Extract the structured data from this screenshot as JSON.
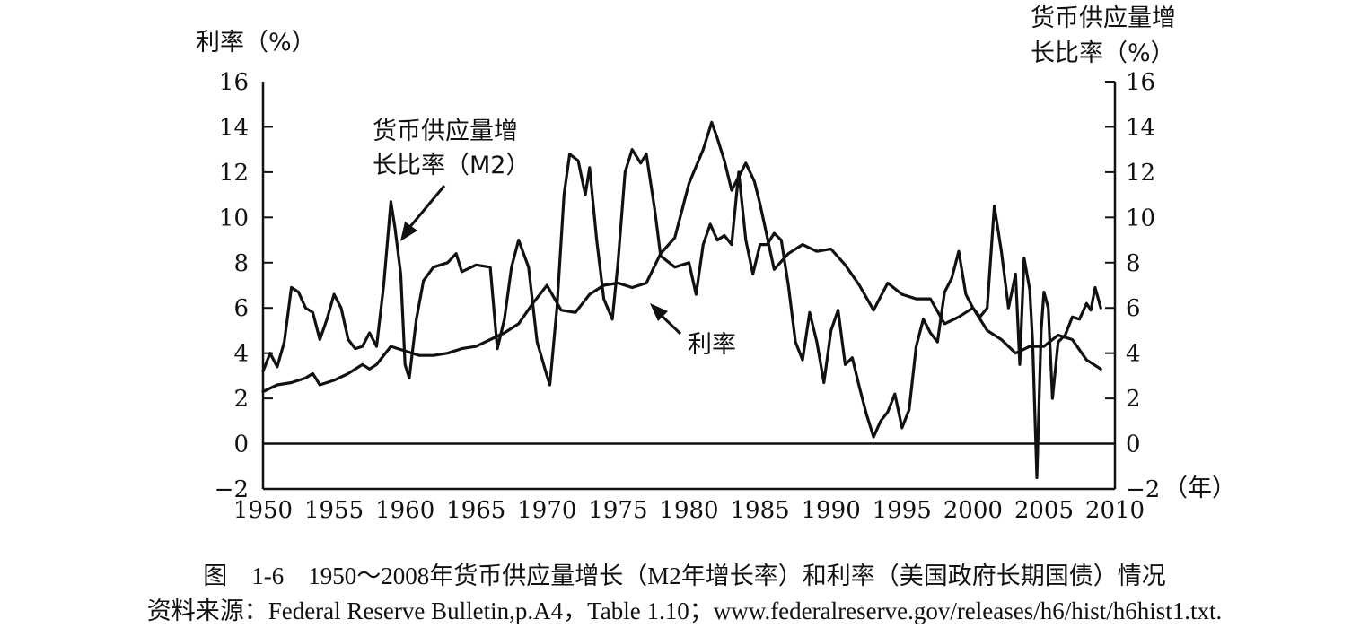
{
  "chart_data": {
    "type": "line",
    "title": "",
    "ylabel_left": "利率（%）",
    "ylabel_right_line1": "货币供应量增",
    "ylabel_right_line2": "长比率（%）",
    "x_unit_label": "（年）",
    "xlim": [
      1950,
      2010
    ],
    "ylim": [
      -2,
      16
    ],
    "x_ticks": [
      "1950",
      "1955",
      "1960",
      "1965",
      "1970",
      "1975",
      "1980",
      "1985",
      "1990",
      "1995",
      "2000",
      "2005",
      "2010"
    ],
    "y_ticks_left": [
      "16",
      "14",
      "12",
      "10",
      "8",
      "6",
      "4",
      "2",
      "0",
      "−2"
    ],
    "y_ticks_right": [
      "16",
      "14",
      "12",
      "10",
      "8",
      "6",
      "4",
      "2",
      "0",
      "−2"
    ],
    "annotation_m2_line1": "货币供应量增",
    "annotation_m2_line2": "长比率（M2）",
    "annotation_rate": "利率",
    "series": [
      {
        "name": "货币供应量增长比率（M2）",
        "points": [
          [
            1950.0,
            3.2
          ],
          [
            1950.5,
            4.0
          ],
          [
            1951.0,
            3.4
          ],
          [
            1951.5,
            4.5
          ],
          [
            1952.0,
            6.9
          ],
          [
            1952.5,
            6.7
          ],
          [
            1953.0,
            6.0
          ],
          [
            1953.5,
            5.8
          ],
          [
            1954.0,
            4.6
          ],
          [
            1954.5,
            5.5
          ],
          [
            1955.0,
            6.6
          ],
          [
            1955.5,
            6.0
          ],
          [
            1956.0,
            4.6
          ],
          [
            1956.5,
            4.2
          ],
          [
            1957.0,
            4.3
          ],
          [
            1957.5,
            4.9
          ],
          [
            1958.0,
            4.3
          ],
          [
            1958.5,
            7.0
          ],
          [
            1959.0,
            10.7
          ],
          [
            1959.3,
            9.5
          ],
          [
            1959.7,
            7.5
          ],
          [
            1960.0,
            3.5
          ],
          [
            1960.3,
            2.9
          ],
          [
            1960.8,
            5.5
          ],
          [
            1961.3,
            7.2
          ],
          [
            1962.0,
            7.8
          ],
          [
            1963.0,
            8.0
          ],
          [
            1963.6,
            8.4
          ],
          [
            1964.0,
            7.6
          ],
          [
            1965.0,
            7.9
          ],
          [
            1966.0,
            7.8
          ],
          [
            1966.5,
            4.2
          ],
          [
            1967.0,
            5.5
          ],
          [
            1967.5,
            7.8
          ],
          [
            1968.0,
            9.0
          ],
          [
            1968.7,
            7.8
          ],
          [
            1969.3,
            4.5
          ],
          [
            1970.0,
            3.0
          ],
          [
            1970.2,
            2.6
          ],
          [
            1970.7,
            6.0
          ],
          [
            1971.2,
            11.0
          ],
          [
            1971.6,
            12.8
          ],
          [
            1972.2,
            12.5
          ],
          [
            1972.7,
            11.0
          ],
          [
            1973.0,
            12.2
          ],
          [
            1973.5,
            9.0
          ],
          [
            1974.0,
            6.4
          ],
          [
            1974.6,
            5.5
          ],
          [
            1975.0,
            8.0
          ],
          [
            1975.5,
            12.0
          ],
          [
            1976.0,
            13.0
          ],
          [
            1976.6,
            12.4
          ],
          [
            1977.0,
            12.8
          ],
          [
            1977.6,
            10.3
          ],
          [
            1978.0,
            8.3
          ],
          [
            1979.0,
            7.8
          ],
          [
            1980.0,
            8.0
          ],
          [
            1980.5,
            6.6
          ],
          [
            1981.0,
            8.8
          ],
          [
            1981.5,
            9.7
          ],
          [
            1982.0,
            9.0
          ],
          [
            1982.5,
            9.2
          ],
          [
            1983.0,
            8.8
          ],
          [
            1983.5,
            12.0
          ],
          [
            1984.0,
            9.0
          ],
          [
            1984.5,
            7.5
          ],
          [
            1985.0,
            8.8
          ],
          [
            1985.5,
            8.8
          ],
          [
            1986.0,
            9.3
          ],
          [
            1986.5,
            9.0
          ],
          [
            1987.0,
            7.0
          ],
          [
            1987.5,
            4.5
          ],
          [
            1988.0,
            3.7
          ],
          [
            1988.5,
            5.8
          ],
          [
            1989.0,
            4.5
          ],
          [
            1989.5,
            2.7
          ],
          [
            1990.0,
            5.0
          ],
          [
            1990.5,
            5.9
          ],
          [
            1991.0,
            3.5
          ],
          [
            1991.5,
            3.8
          ],
          [
            1992.0,
            2.5
          ],
          [
            1992.5,
            1.3
          ],
          [
            1993.0,
            0.3
          ],
          [
            1993.5,
            1.0
          ],
          [
            1994.0,
            1.4
          ],
          [
            1994.5,
            2.2
          ],
          [
            1995.0,
            0.7
          ],
          [
            1995.5,
            1.5
          ],
          [
            1996.0,
            4.3
          ],
          [
            1996.5,
            5.5
          ],
          [
            1997.0,
            4.9
          ],
          [
            1997.5,
            4.5
          ],
          [
            1998.0,
            6.7
          ],
          [
            1998.5,
            7.3
          ],
          [
            1999.0,
            8.5
          ],
          [
            1999.5,
            6.6
          ],
          [
            2000.0,
            6.0
          ],
          [
            2000.5,
            5.6
          ],
          [
            2001.0,
            6.0
          ],
          [
            2001.5,
            10.5
          ],
          [
            2002.0,
            8.5
          ],
          [
            2002.5,
            6.0
          ],
          [
            2003.0,
            7.5
          ],
          [
            2003.3,
            3.5
          ],
          [
            2003.6,
            8.2
          ],
          [
            2004.0,
            6.8
          ],
          [
            2004.2,
            4.5
          ],
          [
            2004.5,
            -1.5
          ],
          [
            2004.8,
            5.0
          ],
          [
            2005.0,
            6.7
          ],
          [
            2005.3,
            6.0
          ],
          [
            2005.6,
            2.0
          ],
          [
            2006.0,
            4.5
          ],
          [
            2006.5,
            4.8
          ],
          [
            2007.0,
            5.6
          ],
          [
            2007.5,
            5.5
          ],
          [
            2008.0,
            6.2
          ],
          [
            2008.3,
            5.9
          ],
          [
            2008.6,
            6.9
          ],
          [
            2009.0,
            6.0
          ]
        ]
      },
      {
        "name": "利率",
        "points": [
          [
            1950.0,
            2.3
          ],
          [
            1951.0,
            2.6
          ],
          [
            1952.0,
            2.7
          ],
          [
            1953.0,
            2.9
          ],
          [
            1953.5,
            3.1
          ],
          [
            1954.0,
            2.6
          ],
          [
            1955.0,
            2.8
          ],
          [
            1956.0,
            3.1
          ],
          [
            1957.0,
            3.5
          ],
          [
            1957.5,
            3.3
          ],
          [
            1958.0,
            3.5
          ],
          [
            1959.0,
            4.3
          ],
          [
            1960.0,
            4.1
          ],
          [
            1961.0,
            3.9
          ],
          [
            1962.0,
            3.9
          ],
          [
            1963.0,
            4.0
          ],
          [
            1964.0,
            4.2
          ],
          [
            1965.0,
            4.3
          ],
          [
            1966.0,
            4.6
          ],
          [
            1967.0,
            4.9
          ],
          [
            1968.0,
            5.3
          ],
          [
            1969.0,
            6.2
          ],
          [
            1970.0,
            7.0
          ],
          [
            1971.0,
            5.9
          ],
          [
            1972.0,
            5.8
          ],
          [
            1973.0,
            6.6
          ],
          [
            1974.0,
            7.0
          ],
          [
            1975.0,
            7.1
          ],
          [
            1976.0,
            6.9
          ],
          [
            1977.0,
            7.1
          ],
          [
            1978.0,
            8.4
          ],
          [
            1979.0,
            9.1
          ],
          [
            1980.0,
            11.5
          ],
          [
            1981.0,
            13.0
          ],
          [
            1981.6,
            14.2
          ],
          [
            1982.0,
            13.5
          ],
          [
            1982.5,
            12.5
          ],
          [
            1983.0,
            11.2
          ],
          [
            1984.0,
            12.4
          ],
          [
            1984.6,
            11.6
          ],
          [
            1985.0,
            10.6
          ],
          [
            1986.0,
            7.7
          ],
          [
            1987.0,
            8.4
          ],
          [
            1988.0,
            8.8
          ],
          [
            1989.0,
            8.5
          ],
          [
            1990.0,
            8.6
          ],
          [
            1991.0,
            7.9
          ],
          [
            1992.0,
            7.0
          ],
          [
            1993.0,
            5.9
          ],
          [
            1994.0,
            7.1
          ],
          [
            1995.0,
            6.6
          ],
          [
            1996.0,
            6.4
          ],
          [
            1997.0,
            6.4
          ],
          [
            1998.0,
            5.3
          ],
          [
            1999.0,
            5.6
          ],
          [
            2000.0,
            6.0
          ],
          [
            2001.0,
            5.0
          ],
          [
            2002.0,
            4.6
          ],
          [
            2003.0,
            4.0
          ],
          [
            2004.0,
            4.3
          ],
          [
            2005.0,
            4.3
          ],
          [
            2006.0,
            4.8
          ],
          [
            2007.0,
            4.6
          ],
          [
            2008.0,
            3.7
          ],
          [
            2009.0,
            3.3
          ]
        ]
      }
    ]
  },
  "caption": {
    "title": "图　1-6　1950～2008年货币供应量增长（M2年增长率）和利率（美国政府长期国债）情况",
    "source": "资料来源：Federal Reserve Bulletin,p.A4，Table 1.10；www.federalreserve.gov/releases/h6/hist/h6hist1.txt."
  }
}
